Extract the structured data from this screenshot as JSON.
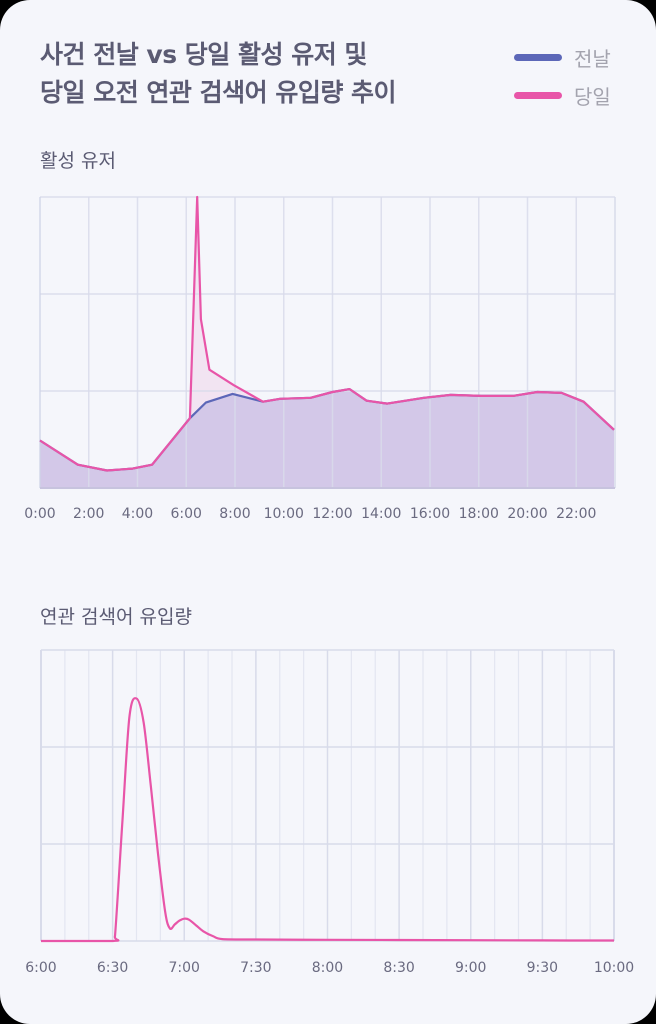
{
  "title": {
    "line1": "사건 전날 vs 당일 활성 유저 및",
    "line2": "당일 오전 연관 검색어 유입량 추이"
  },
  "legend": [
    {
      "label": "전날",
      "color": "#5c67b8"
    },
    {
      "label": "당일",
      "color": "#e855a8"
    }
  ],
  "colors": {
    "background": "#f5f6fb",
    "grid": "#d8dbea",
    "area_fill": "#d3c8e8",
    "spike_fill": "#f2e4f2",
    "prev_day": "#5c67b8",
    "same_day": "#e855a8"
  },
  "sections": {
    "active_users": "활성 유저",
    "search_inflow": "연관 검색어 유입량"
  },
  "chart_data": [
    {
      "type": "area",
      "title": "활성 유저",
      "xlabel": "",
      "ylabel": "",
      "x_unit": "hour",
      "xlim": [
        0,
        23.6
      ],
      "ylim": [
        0,
        3
      ],
      "xticks": [
        "0:00",
        "2:00",
        "4:00",
        "6:00",
        "8:00",
        "10:00",
        "12:00",
        "14:00",
        "16:00",
        "18:00",
        "20:00",
        "22:00"
      ],
      "grid": true,
      "y_tick_labels": false,
      "series": [
        {
          "name": "전날",
          "x": [
            0,
            1.55,
            2.75,
            3.8,
            4.6,
            6.15,
            6.8,
            7.9,
            9.15,
            9.85,
            11.1,
            12.0,
            12.7,
            13.4,
            14.25,
            15.75,
            16.85,
            18.1,
            19.4,
            20.4,
            21.4,
            22.3,
            23.55
          ],
          "values": [
            0.49,
            0.24,
            0.18,
            0.2,
            0.24,
            0.72,
            0.88,
            0.97,
            0.89,
            0.92,
            0.93,
            0.99,
            1.02,
            0.9,
            0.87,
            0.93,
            0.96,
            0.95,
            0.95,
            0.99,
            0.98,
            0.89,
            0.6
          ]
        },
        {
          "name": "당일",
          "x": [
            0,
            1.55,
            2.75,
            3.8,
            4.6,
            6.15,
            6.45,
            6.6,
            6.95,
            7.95,
            9.15,
            9.85,
            11.1,
            12.0,
            12.7,
            13.4,
            14.25,
            15.75,
            16.85,
            18.1,
            19.4,
            20.4,
            21.4,
            22.3,
            23.55
          ],
          "values": [
            0.49,
            0.24,
            0.18,
            0.2,
            0.24,
            0.72,
            3.0,
            1.74,
            1.22,
            1.06,
            0.89,
            0.92,
            0.93,
            0.99,
            1.02,
            0.9,
            0.87,
            0.93,
            0.96,
            0.95,
            0.95,
            0.99,
            0.98,
            0.89,
            0.6
          ]
        }
      ]
    },
    {
      "type": "line",
      "title": "연관 검색어 유입량",
      "xlabel": "",
      "ylabel": "",
      "x_unit": "minutes since 6:00",
      "xlim": [
        0,
        240
      ],
      "ylim": [
        0,
        3
      ],
      "xticks": [
        "6:00",
        "6:30",
        "7:00",
        "7:30",
        "8:00",
        "8:30",
        "9:00",
        "9:30",
        "10:00"
      ],
      "grid": true,
      "minor_grid_minutes": 10,
      "y_tick_labels": false,
      "series": [
        {
          "name": "당일",
          "x": [
            0,
            30,
            31,
            34,
            37,
            40,
            43,
            46,
            49,
            52,
            54,
            56,
            58,
            60,
            62,
            65,
            68,
            72,
            76,
            90,
            120,
            150,
            180,
            210,
            240
          ],
          "values": [
            0,
            0,
            0.05,
            1.2,
            2.3,
            2.5,
            2.25,
            1.6,
            0.9,
            0.3,
            0.13,
            0.17,
            0.21,
            0.23,
            0.22,
            0.16,
            0.1,
            0.05,
            0.02,
            0.015,
            0.012,
            0.01,
            0.008,
            0.006,
            0.005
          ]
        }
      ]
    }
  ]
}
